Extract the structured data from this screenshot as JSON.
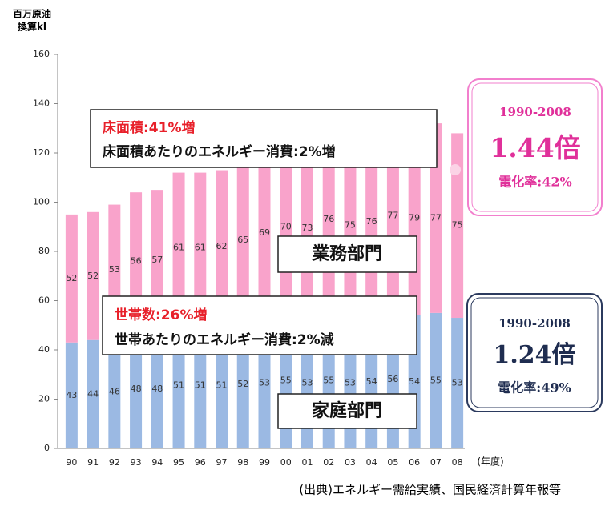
{
  "chart_data": {
    "type": "stacked-bar",
    "y_axis_label": [
      "百万原油",
      "換算kl"
    ],
    "x_axis_label": "(年度)",
    "source": "(出典)エネルギー需給実績、国民経済計算年報等",
    "categories": [
      "90",
      "91",
      "92",
      "93",
      "94",
      "95",
      "96",
      "97",
      "98",
      "99",
      "00",
      "01",
      "02",
      "03",
      "04",
      "05",
      "06",
      "07",
      "08"
    ],
    "series": [
      {
        "name": "家庭部門",
        "color": "#9bb9e3",
        "values": [
          43,
          44,
          46,
          48,
          48,
          51,
          51,
          51,
          52,
          53,
          55,
          53,
          55,
          53,
          54,
          56,
          54,
          55,
          53
        ]
      },
      {
        "name": "業務部門",
        "color": "#f9a3cb",
        "values": [
          52,
          52,
          53,
          56,
          57,
          61,
          61,
          62,
          65,
          69,
          70,
          73,
          76,
          75,
          76,
          77,
          79,
          77,
          75
        ]
      }
    ],
    "ylim": [
      0,
      160
    ],
    "yticks": [
      0,
      20,
      40,
      60,
      80,
      100,
      120,
      140,
      160
    ],
    "notes": [
      {
        "lines": [
          "床面積:41%増",
          "床面積あたりのエネルギー消費:2%増"
        ]
      },
      {
        "lines": [
          "世帯数:26%増",
          "世帯あたりのエネルギー消費:2%減"
        ]
      }
    ],
    "summaries": [
      {
        "period": "1990-2008",
        "ratio": "1.44倍",
        "electrification": "電化率:42%"
      },
      {
        "period": "1990-2008",
        "ratio": "1.24倍",
        "electrification": "電化率:49%"
      }
    ]
  }
}
